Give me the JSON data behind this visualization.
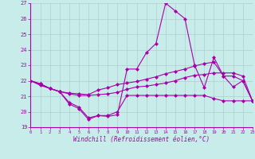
{
  "xlabel": "Windchill (Refroidissement éolien,°C)",
  "xlim": [
    0,
    23
  ],
  "ylim": [
    19,
    27
  ],
  "yticks": [
    19,
    20,
    21,
    22,
    23,
    24,
    25,
    26,
    27
  ],
  "xticks": [
    0,
    1,
    2,
    3,
    4,
    5,
    6,
    7,
    8,
    9,
    10,
    11,
    12,
    13,
    14,
    15,
    16,
    17,
    18,
    19,
    20,
    21,
    22,
    23
  ],
  "bg_color": "#c8ecea",
  "grid_color": "#b0cece",
  "line_color": "#aa00aa",
  "line_width": 0.8,
  "marker": "D",
  "marker_size": 2.0,
  "series": [
    [
      22.0,
      21.8,
      21.5,
      21.3,
      20.6,
      20.3,
      19.6,
      19.75,
      19.75,
      20.0,
      21.05,
      21.05,
      21.05,
      21.05,
      21.05,
      21.05,
      21.05,
      21.05,
      21.05,
      20.85,
      20.7,
      20.7,
      20.7,
      20.7
    ],
    [
      22.0,
      21.8,
      21.5,
      21.3,
      21.2,
      21.15,
      21.1,
      21.4,
      21.55,
      21.75,
      21.85,
      21.95,
      22.1,
      22.25,
      22.45,
      22.6,
      22.75,
      22.95,
      23.1,
      23.2,
      22.3,
      22.3,
      22.0,
      20.7
    ],
    [
      22.0,
      21.75,
      21.5,
      21.3,
      21.15,
      21.05,
      21.05,
      21.1,
      21.15,
      21.25,
      21.45,
      21.6,
      21.65,
      21.75,
      21.85,
      22.0,
      22.2,
      22.35,
      22.4,
      22.5,
      22.5,
      22.5,
      22.3,
      20.7
    ],
    [
      22.0,
      21.7,
      21.5,
      21.3,
      20.5,
      20.2,
      19.5,
      19.75,
      19.7,
      19.8,
      22.75,
      22.75,
      23.8,
      24.4,
      27.0,
      26.5,
      26.0,
      23.0,
      21.55,
      23.5,
      22.3,
      21.6,
      22.0,
      20.7
    ]
  ]
}
